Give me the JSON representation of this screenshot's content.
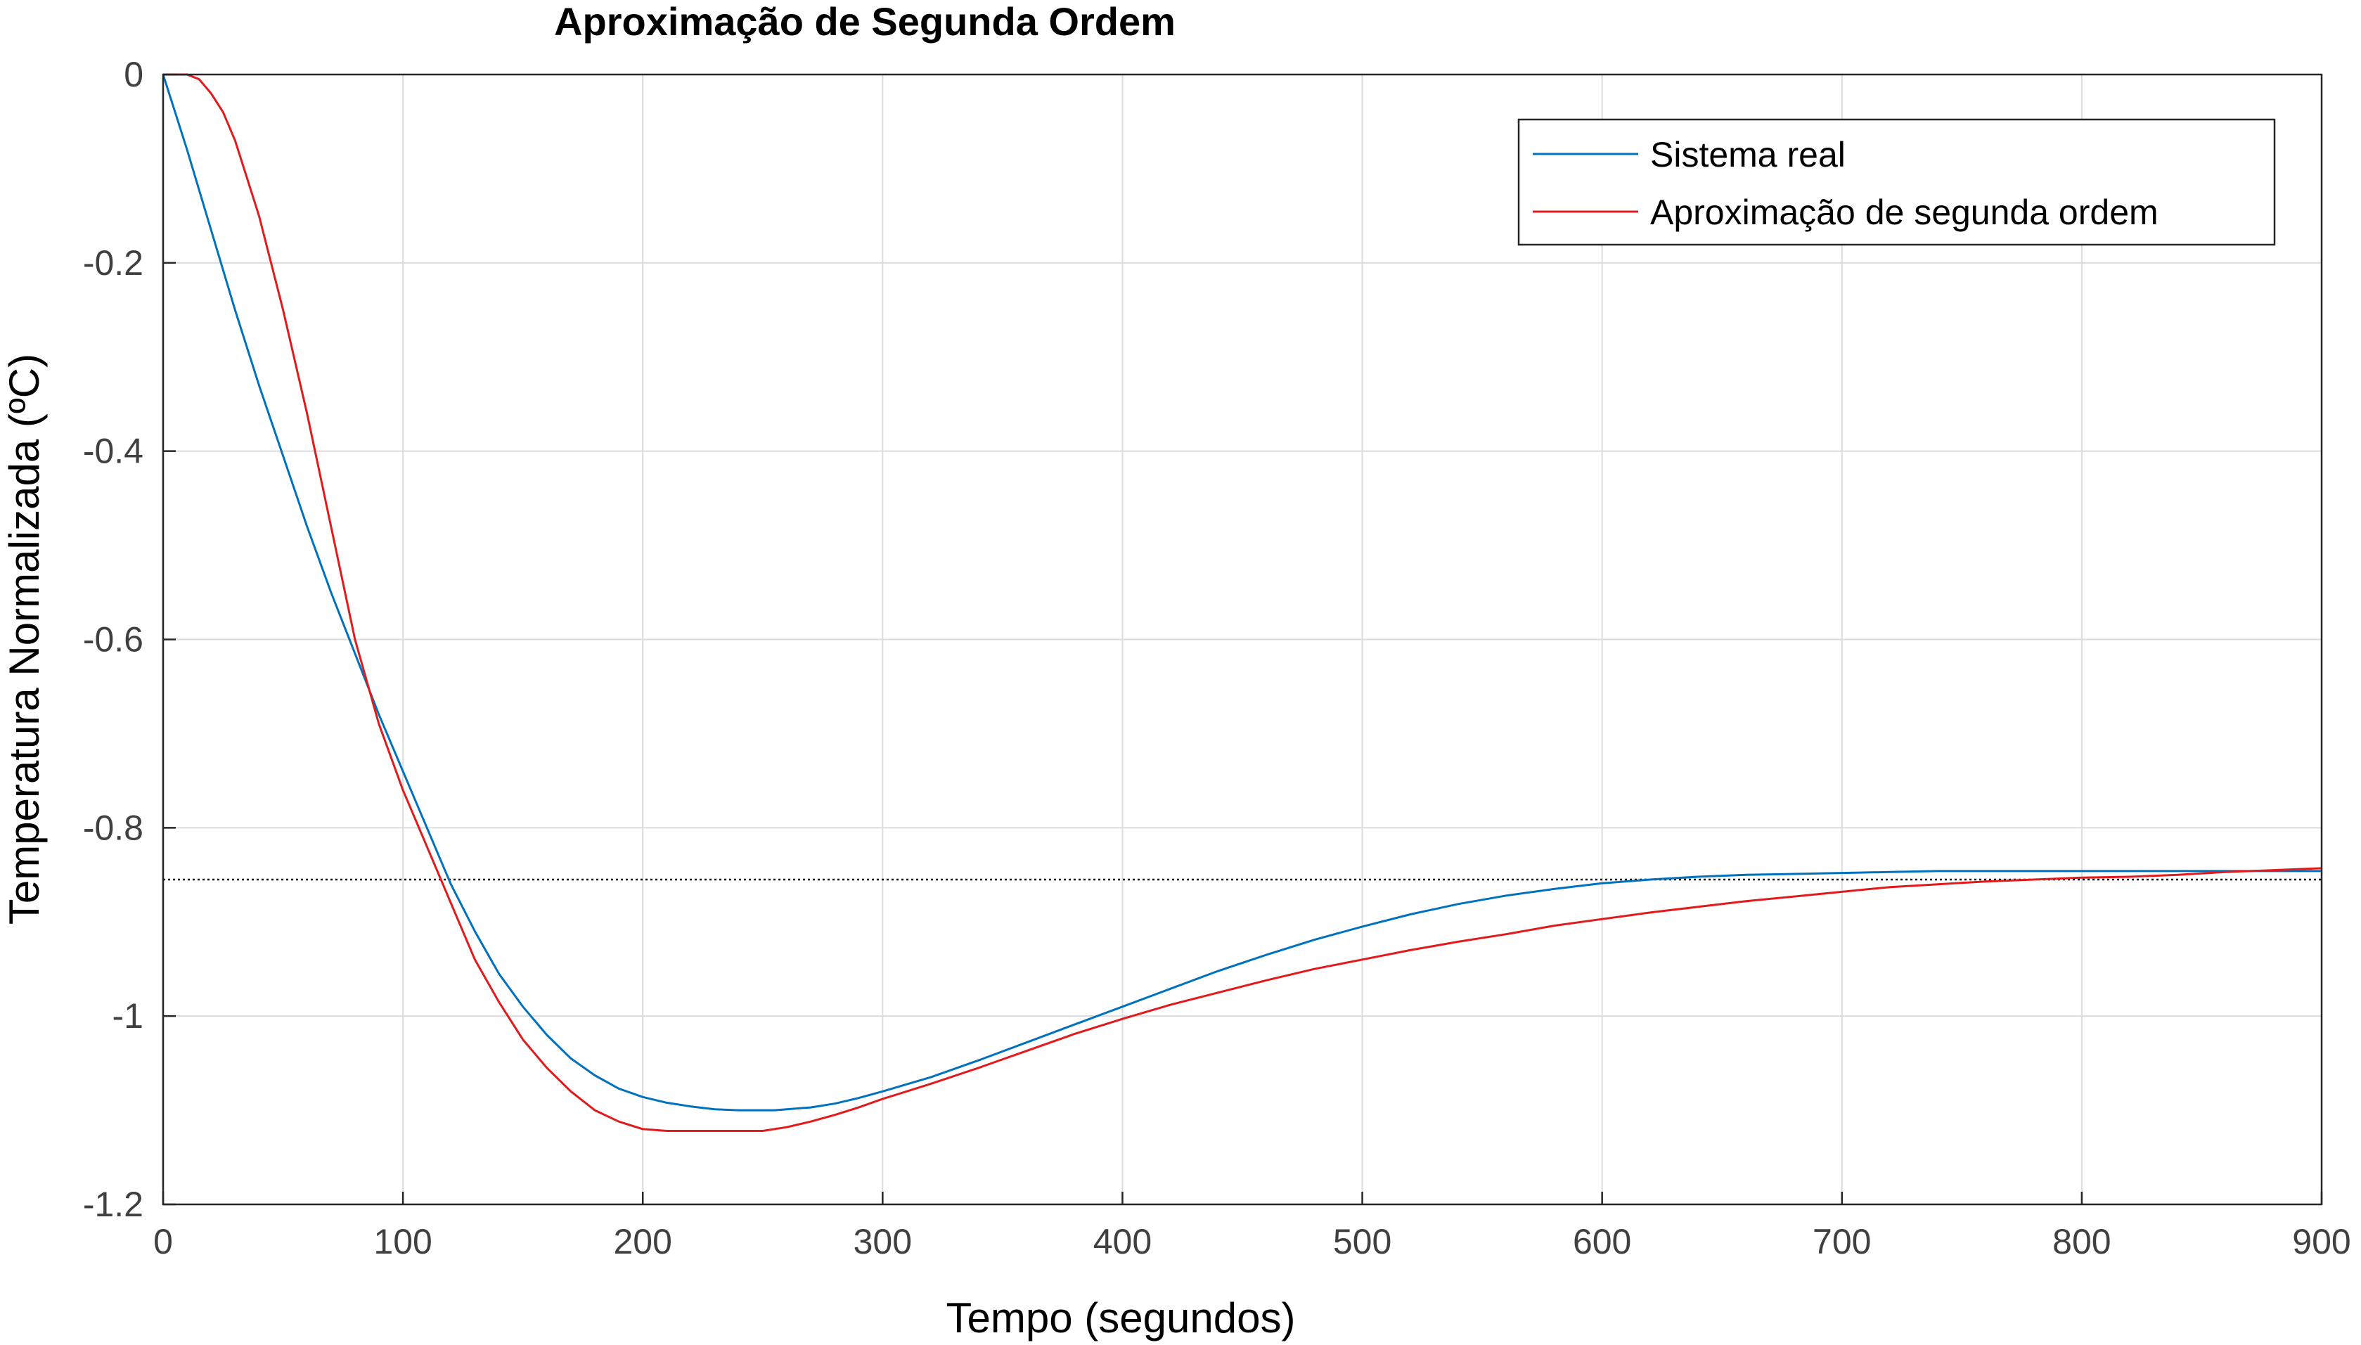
{
  "chart_data": {
    "type": "line",
    "title": "Aproximação de Segunda Ordem",
    "xlabel": "Tempo (segundos)",
    "ylabel": "Temperatura Normalizada (ºC)",
    "xlim": [
      0,
      900
    ],
    "ylim": [
      -1.2,
      0
    ],
    "xticks": [
      0,
      100,
      200,
      300,
      400,
      500,
      600,
      700,
      800,
      900
    ],
    "xtick_labels": [
      "0",
      "100",
      "200",
      "300",
      "400",
      "500",
      "600",
      "700",
      "800",
      "900"
    ],
    "yticks": [
      0,
      -0.2,
      -0.4,
      -0.6,
      -0.8,
      -1,
      -1.2
    ],
    "ytick_labels": [
      "0",
      "-0.2",
      "-0.4",
      "-0.6",
      "-0.8",
      "-1",
      "-1.2"
    ],
    "grid": true,
    "legend_position": "top-right",
    "reference_line": {
      "y": -0.855,
      "style": "dotted",
      "color": "#000000"
    },
    "series": [
      {
        "name": "Sistema real",
        "color": "#0072bd",
        "x": [
          0,
          10,
          20,
          30,
          40,
          50,
          60,
          70,
          80,
          90,
          100,
          110,
          120,
          130,
          140,
          150,
          160,
          170,
          180,
          190,
          200,
          210,
          220,
          230,
          240,
          250,
          255,
          260,
          270,
          280,
          290,
          300,
          320,
          340,
          360,
          380,
          400,
          420,
          440,
          460,
          480,
          500,
          520,
          540,
          560,
          580,
          600,
          620,
          640,
          660,
          680,
          700,
          720,
          740,
          760,
          780,
          800,
          820,
          840,
          860,
          880,
          900
        ],
        "y": [
          0,
          -0.08,
          -0.165,
          -0.25,
          -0.33,
          -0.405,
          -0.48,
          -0.55,
          -0.615,
          -0.68,
          -0.74,
          -0.8,
          -0.86,
          -0.91,
          -0.955,
          -0.99,
          -1.02,
          -1.045,
          -1.063,
          -1.077,
          -1.086,
          -1.092,
          -1.096,
          -1.099,
          -1.1,
          -1.1,
          -1.1,
          -1.099,
          -1.097,
          -1.093,
          -1.087,
          -1.08,
          -1.065,
          -1.047,
          -1.028,
          -1.009,
          -0.99,
          -0.971,
          -0.952,
          -0.935,
          -0.919,
          -0.905,
          -0.892,
          -0.881,
          -0.872,
          -0.865,
          -0.859,
          -0.855,
          -0.852,
          -0.85,
          -0.849,
          -0.848,
          -0.847,
          -0.846,
          -0.846,
          -0.846,
          -0.846,
          -0.846,
          -0.846,
          -0.846,
          -0.846,
          -0.846
        ]
      },
      {
        "name": "Aproximação de segunda ordem",
        "color": "#e31a1c",
        "x": [
          0,
          5,
          10,
          15,
          20,
          25,
          30,
          40,
          50,
          60,
          70,
          80,
          90,
          100,
          110,
          120,
          130,
          140,
          150,
          160,
          170,
          180,
          190,
          200,
          210,
          220,
          230,
          240,
          250,
          260,
          270,
          280,
          290,
          300,
          320,
          340,
          360,
          380,
          400,
          420,
          440,
          460,
          480,
          500,
          520,
          540,
          560,
          580,
          600,
          620,
          640,
          660,
          680,
          700,
          720,
          740,
          760,
          780,
          800,
          820,
          840,
          860,
          880,
          900
        ],
        "y": [
          0,
          0,
          0,
          -0.005,
          -0.02,
          -0.04,
          -0.07,
          -0.15,
          -0.25,
          -0.36,
          -0.48,
          -0.6,
          -0.69,
          -0.76,
          -0.82,
          -0.88,
          -0.94,
          -0.985,
          -1.025,
          -1.055,
          -1.08,
          -1.1,
          -1.112,
          -1.12,
          -1.122,
          -1.122,
          -1.122,
          -1.122,
          -1.122,
          -1.118,
          -1.112,
          -1.105,
          -1.097,
          -1.088,
          -1.072,
          -1.055,
          -1.037,
          -1.019,
          -1.003,
          -0.988,
          -0.975,
          -0.962,
          -0.95,
          -0.94,
          -0.93,
          -0.921,
          -0.913,
          -0.904,
          -0.897,
          -0.89,
          -0.884,
          -0.878,
          -0.873,
          -0.868,
          -0.863,
          -0.86,
          -0.857,
          -0.855,
          -0.853,
          -0.852,
          -0.85,
          -0.847,
          -0.845,
          -0.843
        ]
      }
    ]
  }
}
